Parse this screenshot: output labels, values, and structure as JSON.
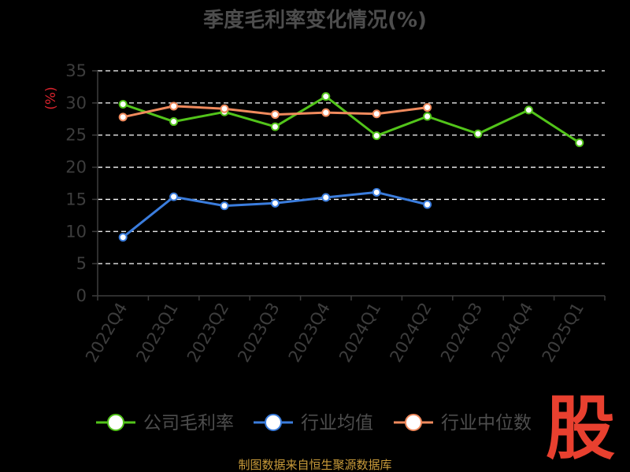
{
  "chart_data": {
    "type": "line",
    "title": "季度毛利率变化情况(%)",
    "ylabel": "(%)",
    "xlabel": "",
    "categories": [
      "2022Q4",
      "2023Q1",
      "2023Q2",
      "2023Q3",
      "2023Q4",
      "2024Q1",
      "2024Q2",
      "2024Q3",
      "2024Q4",
      "2025Q1"
    ],
    "ylim": [
      0,
      35
    ],
    "yticks": [
      0,
      5,
      10,
      15,
      20,
      25,
      30,
      35
    ],
    "grid": true,
    "legend_position": "bottom",
    "series": [
      {
        "name": "公司毛利率",
        "color": "#52c41a",
        "values": [
          29.8,
          27.1,
          28.6,
          26.3,
          31.0,
          24.9,
          27.9,
          25.2,
          28.9,
          23.8
        ]
      },
      {
        "name": "行业均值",
        "color": "#3b7ddd",
        "values": [
          9.1,
          15.4,
          14.0,
          14.4,
          15.3,
          16.1,
          14.2,
          null,
          null,
          null
        ]
      },
      {
        "name": "行业中位数",
        "color": "#f08a5d",
        "values": [
          27.8,
          29.5,
          29.1,
          28.2,
          28.5,
          28.3,
          29.3,
          null,
          null,
          null
        ]
      }
    ]
  },
  "source": "制图数据来自恒生聚源数据库",
  "logo": "股"
}
